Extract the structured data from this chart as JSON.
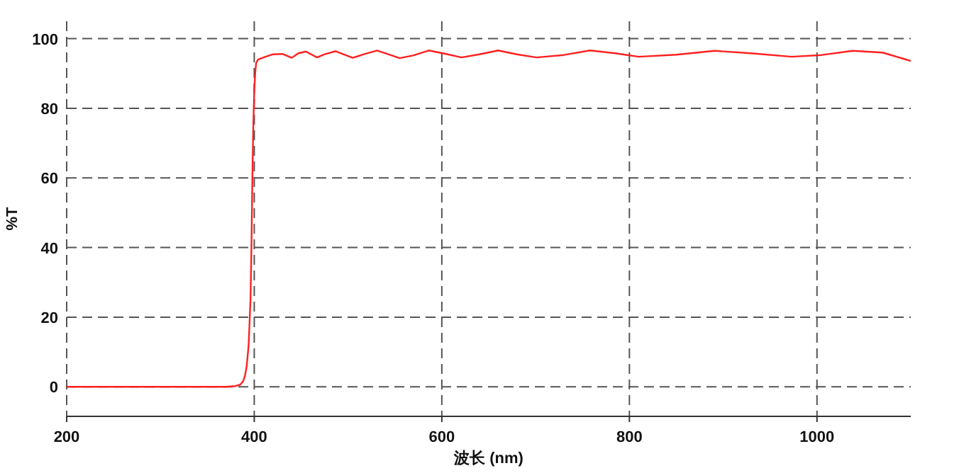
{
  "chart_data": {
    "type": "line",
    "xlabel": "波长 (nm)",
    "ylabel": "%T",
    "xlim": [
      200,
      1100
    ],
    "ylim": [
      -8.5,
      105
    ],
    "xticks": [
      200,
      400,
      600,
      800,
      1000
    ],
    "yticks": [
      0,
      20,
      40,
      60,
      80,
      100
    ],
    "grid": true,
    "marker": "none",
    "line_style": "solid",
    "series": [
      {
        "color": "#ff2020",
        "x": [
          200,
          300,
          370,
          380,
          385,
          388,
          390,
          392,
          394,
          396,
          397,
          398,
          399,
          400,
          401,
          402,
          404,
          407,
          412,
          420,
          430,
          440,
          447,
          455,
          467,
          475,
          487,
          495,
          505,
          518,
          531,
          543,
          555,
          570,
          586,
          603,
          621,
          640,
          660,
          680,
          701,
          730,
          758,
          785,
          810,
          850,
          891,
          930,
          973,
          1005,
          1038,
          1070,
          1100
        ],
        "values": [
          0,
          0,
          0,
          0.2,
          0.6,
          1.5,
          3,
          6,
          12,
          25,
          40,
          60,
          75,
          85,
          90,
          93,
          94,
          94.3,
          94.8,
          95.5,
          95.6,
          94.5,
          95.8,
          96.3,
          94.6,
          95.5,
          96.4,
          95.5,
          94.5,
          95.6,
          96.6,
          95.5,
          94.4,
          95.2,
          96.6,
          95.7,
          94.6,
          95.5,
          96.6,
          95.5,
          94.6,
          95.3,
          96.6,
          95.8,
          94.8,
          95.4,
          96.5,
          95.8,
          94.8,
          95.3,
          96.5,
          96.0,
          93.6
        ]
      }
    ]
  }
}
